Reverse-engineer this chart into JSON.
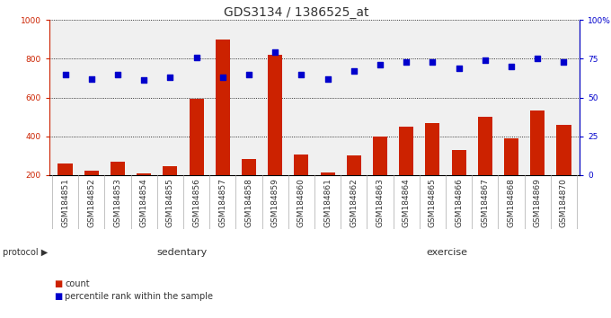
{
  "title": "GDS3134 / 1386525_at",
  "samples": [
    "GSM184851",
    "GSM184852",
    "GSM184853",
    "GSM184854",
    "GSM184855",
    "GSM184856",
    "GSM184857",
    "GSM184858",
    "GSM184859",
    "GSM184860",
    "GSM184861",
    "GSM184862",
    "GSM184863",
    "GSM184864",
    "GSM184865",
    "GSM184866",
    "GSM184867",
    "GSM184868",
    "GSM184869",
    "GSM184870"
  ],
  "counts": [
    260,
    225,
    270,
    210,
    245,
    595,
    900,
    285,
    820,
    305,
    215,
    300,
    400,
    450,
    470,
    330,
    500,
    390,
    535,
    460
  ],
  "percentile_ranks": [
    65,
    62,
    65,
    61,
    63,
    76,
    63,
    65,
    79,
    65,
    62,
    67,
    71,
    73,
    73,
    69,
    74,
    70,
    75,
    73
  ],
  "sedentary_count": 10,
  "exercise_count": 10,
  "bar_color": "#cc2200",
  "dot_color": "#0000cc",
  "sedentary_color": "#ccffcc",
  "exercise_color": "#55dd55",
  "grid_color": "#000000",
  "background_color": "#ffffff",
  "plot_bg_color": "#f0f0f0",
  "xtick_bg_color": "#d8d8d8",
  "ylim_left": [
    200,
    1000
  ],
  "ylim_right": [
    0,
    100
  ],
  "yticks_left": [
    200,
    400,
    600,
    800,
    1000
  ],
  "yticks_right": [
    0,
    25,
    50,
    75,
    100
  ],
  "ytick_labels_right": [
    "0",
    "25",
    "50",
    "75",
    "100%"
  ],
  "title_fontsize": 10,
  "tick_fontsize": 6.5,
  "label_fontsize": 8,
  "legend_fontsize": 8
}
